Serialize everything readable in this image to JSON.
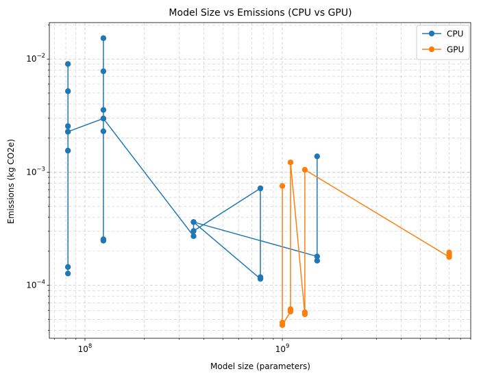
{
  "chart_data": {
    "type": "line",
    "title": "Model Size vs Emissions (CPU vs GPU)",
    "xlabel": "Model size (parameters)",
    "ylabel": "Emissions (kg CO2e)",
    "xscale": "log",
    "yscale": "log",
    "xlim": [
      66000000,
      9000000000
    ],
    "ylim": [
      3.4e-05,
      0.021
    ],
    "x_major_ticks": [
      {
        "value": 100000000,
        "base": "10",
        "exp": "8"
      },
      {
        "value": 1000000000,
        "base": "10",
        "exp": "9"
      }
    ],
    "y_major_ticks": [
      {
        "value": 0.0001,
        "base": "10",
        "exp": "−4"
      },
      {
        "value": 0.001,
        "base": "10",
        "exp": "−3"
      },
      {
        "value": 0.01,
        "base": "10",
        "exp": "−2"
      }
    ],
    "grid": true,
    "legend": "top-right",
    "series": [
      {
        "name": "CPU",
        "color": "#1f77b4",
        "points": [
          [
            82000000,
            0.00905
          ],
          [
            82000000,
            0.0052
          ],
          [
            82000000,
            0.00255
          ],
          [
            82000000,
            0.00228
          ],
          [
            82000000,
            0.00155
          ],
          [
            82000000,
            0.000145
          ],
          [
            82000000,
            0.000127
          ],
          [
            82000000,
            0.00228
          ],
          [
            124000000,
            0.00298
          ],
          [
            124000000,
            0.0153
          ],
          [
            124000000,
            0.0078
          ],
          [
            124000000,
            0.00355
          ],
          [
            124000000,
            0.0023
          ],
          [
            124000000,
            0.000255
          ],
          [
            124000000,
            0.000248
          ],
          [
            124000000,
            0.00298
          ],
          [
            355000000,
            0.000272
          ],
          [
            355000000,
            0.000362
          ],
          [
            355000000,
            0.000302
          ],
          [
            774000000,
            0.00072
          ],
          [
            774000000,
            0.000118
          ],
          [
            774000000,
            0.000114
          ],
          [
            355000000,
            0.000362
          ],
          [
            1500000000,
            0.00018
          ],
          [
            1500000000,
            0.000165
          ],
          [
            1500000000,
            0.00138
          ]
        ]
      },
      {
        "name": "GPU",
        "color": "#ff7f0e",
        "points": [
          [
            1000000000,
            0.000755
          ],
          [
            1000000000,
            4.68e-05
          ],
          [
            1000000000,
            4.45e-05
          ],
          [
            1100000000,
            5.85e-05
          ],
          [
            1100000000,
            6.15e-05
          ],
          [
            1100000000,
            0.00122
          ],
          [
            1300000000,
            5.55e-05
          ],
          [
            1300000000,
            5.78e-05
          ],
          [
            1300000000,
            0.00105
          ],
          [
            7000000000,
            0.000178
          ],
          [
            7000000000,
            0.000185
          ],
          [
            7000000000,
            0.000195
          ]
        ]
      }
    ]
  }
}
